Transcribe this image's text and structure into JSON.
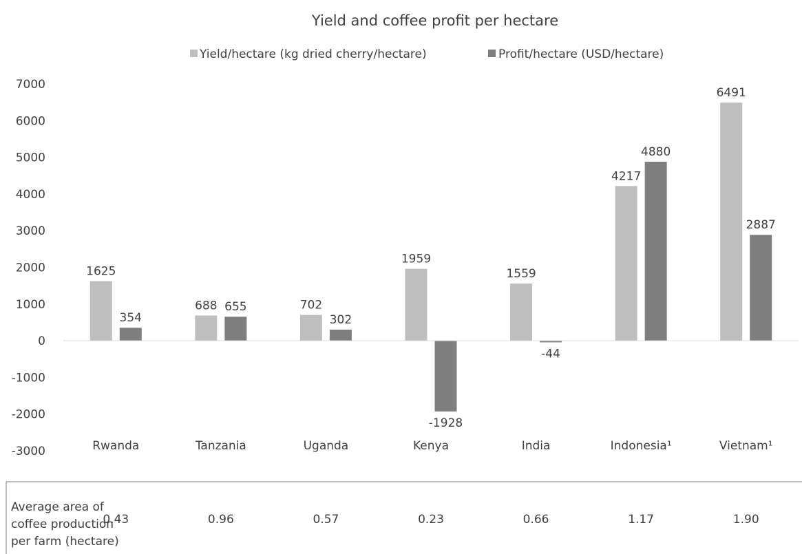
{
  "chart_data": {
    "type": "bar",
    "title": "Yield and coffee profit per hectare",
    "categories": [
      "Rwanda",
      "Tanzania",
      "Uganda",
      "Kenya",
      "India",
      "Indonesia¹",
      "Vietnam¹"
    ],
    "series": [
      {
        "name": "Yield/hectare (kg dried cherry/hectare)",
        "color": "#bfbfbf",
        "values": [
          1625,
          688,
          702,
          1959,
          1559,
          4217,
          6491
        ]
      },
      {
        "name": "Profit/hectare (USD/hectare)",
        "color": "#7f7f7f",
        "values": [
          354,
          655,
          302,
          -1928,
          -44,
          4880,
          2887
        ]
      }
    ],
    "ylim": [
      -3000,
      7000
    ],
    "yticks": [
      7000,
      6000,
      5000,
      4000,
      3000,
      2000,
      1000,
      0,
      -1000,
      -2000,
      -3000
    ],
    "grid": false,
    "legend": "top",
    "data_labels": true,
    "xlabel": "",
    "ylabel": ""
  },
  "table": {
    "row_label_lines": [
      "Average area of",
      "coffee production",
      "per farm (hectare)"
    ],
    "values": [
      "0.43",
      "0.96",
      "0.57",
      "0.23",
      "0.66",
      "1.17",
      "1.90"
    ]
  }
}
